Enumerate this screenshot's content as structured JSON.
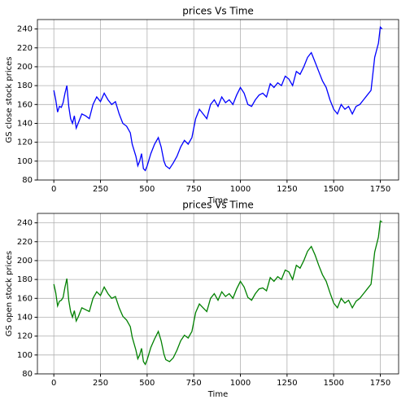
{
  "chart_data": [
    {
      "type": "line",
      "title": "prices Vs Time",
      "xlabel": "Time",
      "ylabel": "GS close stock prices",
      "color": "#0000ff",
      "x": [
        0,
        10,
        20,
        30,
        40,
        50,
        60,
        70,
        80,
        90,
        100,
        110,
        120,
        130,
        150,
        170,
        190,
        210,
        230,
        250,
        270,
        290,
        310,
        330,
        350,
        370,
        390,
        410,
        420,
        440,
        450,
        460,
        470,
        480,
        490,
        500,
        520,
        540,
        560,
        575,
        590,
        600,
        620,
        640,
        660,
        680,
        700,
        720,
        740,
        760,
        780,
        800,
        820,
        840,
        860,
        880,
        900,
        920,
        940,
        960,
        980,
        1000,
        1020,
        1040,
        1060,
        1080,
        1100,
        1120,
        1140,
        1160,
        1180,
        1200,
        1220,
        1240,
        1260,
        1280,
        1300,
        1320,
        1340,
        1360,
        1380,
        1400,
        1420,
        1440,
        1460,
        1480,
        1500,
        1520,
        1540,
        1560,
        1580,
        1600,
        1620,
        1640,
        1660,
        1680,
        1700,
        1720,
        1740,
        1750,
        1760
      ],
      "values": [
        175,
        165,
        152,
        158,
        157,
        162,
        172,
        180,
        158,
        145,
        140,
        148,
        135,
        140,
        150,
        148,
        145,
        160,
        168,
        163,
        172,
        165,
        160,
        163,
        150,
        140,
        137,
        130,
        118,
        105,
        95,
        100,
        108,
        92,
        90,
        95,
        108,
        118,
        125,
        115,
        100,
        95,
        92,
        98,
        105,
        115,
        122,
        118,
        125,
        145,
        155,
        150,
        145,
        160,
        165,
        158,
        168,
        162,
        165,
        160,
        170,
        178,
        172,
        160,
        158,
        165,
        170,
        172,
        168,
        182,
        178,
        183,
        180,
        190,
        187,
        180,
        195,
        192,
        200,
        210,
        215,
        205,
        195,
        185,
        178,
        165,
        155,
        150,
        160,
        155,
        158,
        150,
        158,
        160,
        165,
        170,
        175,
        210,
        225,
        242,
        240
      ],
      "xlim": [
        -88,
        1848
      ],
      "ylim": [
        80,
        250
      ],
      "xticks": [
        0,
        250,
        500,
        750,
        1000,
        1250,
        1500,
        1750
      ],
      "yticks": [
        80,
        100,
        120,
        140,
        160,
        180,
        200,
        220,
        240
      ],
      "grid": true
    },
    {
      "type": "line",
      "title": "prices Vs Time",
      "xlabel": "Time",
      "ylabel": "GS open stock prices",
      "color": "#008000",
      "x": [
        0,
        10,
        20,
        30,
        40,
        50,
        60,
        70,
        80,
        90,
        100,
        110,
        120,
        130,
        150,
        170,
        190,
        210,
        230,
        250,
        270,
        290,
        310,
        330,
        350,
        370,
        390,
        410,
        420,
        440,
        450,
        460,
        470,
        480,
        490,
        500,
        520,
        540,
        560,
        575,
        590,
        600,
        620,
        640,
        660,
        680,
        700,
        720,
        740,
        760,
        780,
        800,
        820,
        840,
        860,
        880,
        900,
        920,
        940,
        960,
        980,
        1000,
        1020,
        1040,
        1060,
        1080,
        1100,
        1120,
        1140,
        1160,
        1180,
        1200,
        1220,
        1240,
        1260,
        1280,
        1300,
        1320,
        1340,
        1360,
        1380,
        1400,
        1420,
        1440,
        1460,
        1480,
        1500,
        1520,
        1540,
        1560,
        1580,
        1600,
        1620,
        1640,
        1660,
        1680,
        1700,
        1720,
        1740,
        1750,
        1760
      ],
      "values": [
        175,
        166,
        152,
        157,
        158,
        161,
        172,
        181,
        158,
        146,
        140,
        147,
        136,
        140,
        150,
        148,
        146,
        160,
        167,
        163,
        172,
        165,
        160,
        162,
        150,
        141,
        137,
        130,
        119,
        105,
        96,
        100,
        107,
        93,
        90,
        95,
        108,
        117,
        125,
        115,
        101,
        95,
        93,
        97,
        105,
        115,
        121,
        118,
        125,
        145,
        154,
        150,
        146,
        160,
        165,
        158,
        167,
        162,
        165,
        160,
        170,
        178,
        172,
        161,
        158,
        165,
        170,
        171,
        168,
        182,
        178,
        183,
        180,
        190,
        188,
        180,
        195,
        192,
        200,
        210,
        215,
        206,
        195,
        185,
        178,
        166,
        155,
        150,
        160,
        155,
        158,
        150,
        157,
        160,
        165,
        170,
        175,
        209,
        225,
        242,
        241
      ],
      "xlim": [
        -88,
        1848
      ],
      "ylim": [
        80,
        250
      ],
      "xticks": [
        0,
        250,
        500,
        750,
        1000,
        1250,
        1500,
        1750
      ],
      "yticks": [
        80,
        100,
        120,
        140,
        160,
        180,
        200,
        220,
        240
      ],
      "grid": true
    }
  ]
}
